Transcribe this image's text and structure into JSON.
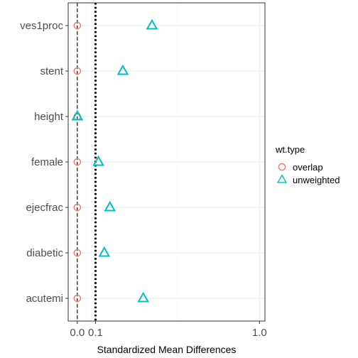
{
  "chart_data": {
    "type": "scatter",
    "categories": [
      "ves1proc",
      "stent",
      "height",
      "female",
      "ejecfrac",
      "diabetic",
      "acutemi"
    ],
    "series": [
      {
        "name": "overlap",
        "marker": "circle",
        "color": "#F8766D",
        "values": [
          0.0,
          0.0,
          0.0,
          0.0,
          0.0,
          0.0,
          0.0
        ]
      },
      {
        "name": "unweighted",
        "marker": "triangle",
        "color": "#00BFC4",
        "values": [
          0.41,
          0.25,
          0.0,
          0.116,
          0.179,
          0.148,
          0.362
        ]
      }
    ],
    "xlabel": "Standardized Mean Differences",
    "ylabel": "",
    "xlim": [
      -0.05,
      1.03
    ],
    "x_ticks": [
      {
        "value": 0.0,
        "label": "0.0"
      },
      {
        "value": 0.1,
        "label": "0.1"
      },
      {
        "value": 1.0,
        "label": "1.0"
      }
    ],
    "reference_lines": [
      {
        "value": 0.0,
        "style": "dashed"
      },
      {
        "value": 0.1,
        "style": "dotted"
      }
    ],
    "grid": true,
    "legend": {
      "title": "wt.type",
      "position": "right"
    }
  }
}
